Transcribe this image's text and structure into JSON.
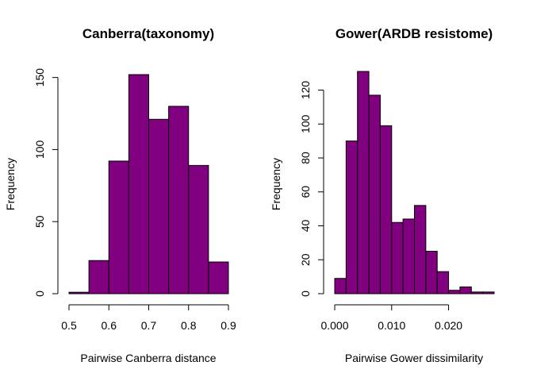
{
  "chart_data": [
    {
      "type": "bar",
      "title": "Canberra(taxonomy)",
      "xlabel": "Pairwise Canberra distance",
      "ylabel": "Frequency",
      "bar_color": "#800080",
      "bin_edges": [
        0.5,
        0.55,
        0.6,
        0.65,
        0.7,
        0.75,
        0.8,
        0.85,
        0.9
      ],
      "values": [
        1,
        23,
        92,
        152,
        121,
        130,
        89,
        22
      ],
      "xlim": [
        0.5,
        0.9
      ],
      "ylim": [
        0,
        152
      ],
      "xticks": [
        0.5,
        0.6,
        0.7,
        0.8,
        0.9
      ],
      "xtick_labels": [
        "0.5",
        "0.6",
        "0.7",
        "0.8",
        "0.9"
      ],
      "yticks": [
        0,
        50,
        100,
        150
      ],
      "ytick_labels": [
        "0",
        "50",
        "100",
        "150"
      ],
      "grid": false,
      "legend": "none"
    },
    {
      "type": "bar",
      "title": "Gower(ARDB resistome)",
      "xlabel": "Pairwise Gower dissimilarity",
      "ylabel": "Frequency",
      "bar_color": "#800080",
      "bin_edges": [
        0.0,
        0.002,
        0.004,
        0.006,
        0.008,
        0.01,
        0.012,
        0.014,
        0.016,
        0.018,
        0.02,
        0.022,
        0.024,
        0.026,
        0.028
      ],
      "values": [
        9,
        90,
        131,
        117,
        99,
        42,
        44,
        52,
        25,
        13,
        2,
        4,
        1,
        1
      ],
      "xlim": [
        0,
        0.028
      ],
      "ylim": [
        0,
        131
      ],
      "xticks": [
        0.0,
        0.01,
        0.02
      ],
      "xtick_labels": [
        "0.000",
        "0.010",
        "0.020"
      ],
      "yticks": [
        0,
        20,
        40,
        60,
        80,
        100,
        120
      ],
      "ytick_labels": [
        "0",
        "20",
        "40",
        "60",
        "80",
        "100",
        "120"
      ],
      "grid": false,
      "legend": "none"
    }
  ]
}
